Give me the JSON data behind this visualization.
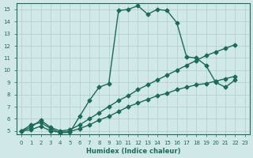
{
  "xlabel": "Humidex (Indice chaleur)",
  "ylabel": "",
  "bg_color": "#d0e8e8",
  "grid_color": "#b0cccc",
  "line_color": "#1a6b5a",
  "xlim": [
    0,
    23
  ],
  "ylim": [
    5,
    15.5
  ],
  "xticks": [
    0,
    1,
    2,
    3,
    4,
    5,
    6,
    7,
    8,
    9,
    10,
    11,
    12,
    13,
    14,
    15,
    16,
    17,
    18,
    19,
    20,
    21,
    22,
    23
  ],
  "yticks": [
    5,
    6,
    7,
    8,
    9,
    10,
    11,
    12,
    13,
    14,
    15
  ],
  "series1_x": [
    0,
    1,
    2,
    3,
    4,
    5,
    6,
    7,
    8,
    9,
    10,
    11,
    12,
    13,
    14,
    15,
    16,
    17,
    18,
    19,
    20,
    21,
    22,
    23
  ],
  "series1_y": [
    5.0,
    5.5,
    5.7,
    5.2,
    4.85,
    4.9,
    6.2,
    7.5,
    8.6,
    8.9,
    14.9,
    15.0,
    15.3,
    14.6,
    15.0,
    14.9,
    13.9,
    11.1,
    11.0,
    10.4,
    9.0,
    8.6,
    9.2,
    null
  ],
  "series2_x": [
    0,
    1,
    2,
    3,
    4,
    5,
    6,
    7,
    8,
    9,
    10,
    11,
    12,
    13,
    14,
    15,
    16,
    17,
    18,
    19,
    20,
    21,
    22,
    23
  ],
  "series2_y": [
    5.0,
    5.3,
    5.9,
    5.3,
    5.0,
    5.1,
    5.5,
    6.0,
    6.5,
    7.0,
    7.5,
    7.9,
    8.4,
    8.8,
    9.2,
    9.6,
    10.0,
    10.4,
    10.8,
    11.2,
    11.5,
    11.8,
    12.1,
    null
  ],
  "series3_x": [
    0,
    1,
    2,
    3,
    4,
    5,
    6,
    7,
    8,
    9,
    10,
    11,
    12,
    13,
    14,
    15,
    16,
    17,
    18,
    19,
    20,
    21,
    22,
    23
  ],
  "series3_y": [
    5.0,
    5.1,
    5.4,
    5.0,
    4.9,
    4.95,
    5.2,
    5.5,
    5.9,
    6.2,
    6.6,
    7.0,
    7.3,
    7.6,
    7.9,
    8.1,
    8.4,
    8.6,
    8.8,
    8.9,
    9.1,
    9.3,
    9.5,
    null
  ]
}
